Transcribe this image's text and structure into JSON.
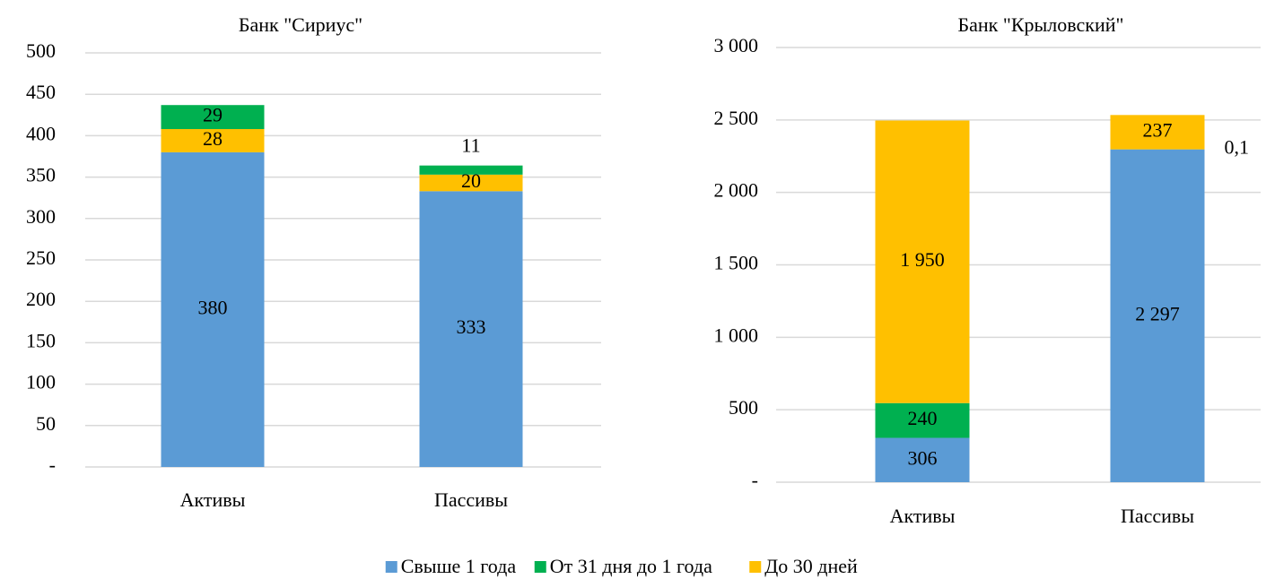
{
  "chart_data": [
    {
      "type": "bar",
      "stacked": true,
      "title": "Банк \"Сириус\"",
      "categories": [
        "Активы",
        "Пассивы"
      ],
      "series": [
        {
          "name": "Свыше 1 года",
          "color": "#5b9bd5",
          "values": [
            380,
            333
          ]
        },
        {
          "name": "До 30 дней",
          "color": "#ffc000",
          "values": [
            28,
            20
          ]
        },
        {
          "name": "От 31 дня до 1 года",
          "color": "#00b050",
          "values": [
            29,
            11
          ]
        }
      ],
      "ylim": [
        0,
        500
      ],
      "yticks": [
        {
          "value": 0,
          "label": "-"
        },
        50,
        100,
        150,
        200,
        250,
        300,
        350,
        400,
        450,
        500
      ],
      "grid": true
    },
    {
      "type": "bar",
      "stacked": true,
      "title": "Банк \"Крыловский\"",
      "categories": [
        "Активы",
        "Пассивы"
      ],
      "series": [
        {
          "name": "Свыше 1 года",
          "color": "#5b9bd5",
          "values": [
            306,
            2297
          ],
          "value_labels": [
            "306",
            "2 297"
          ]
        },
        {
          "name": "От 31 дня до 1 года",
          "color": "#00b050",
          "values": [
            240,
            0.1
          ],
          "value_labels": [
            "240",
            "0,1"
          ]
        },
        {
          "name": "До 30 дней",
          "color": "#ffc000",
          "values": [
            1950,
            237
          ],
          "value_labels": [
            "1 950",
            "237"
          ]
        }
      ],
      "ylim": [
        0,
        3000
      ],
      "yticks": [
        {
          "value": 0,
          "label": "-"
        },
        500,
        {
          "value": 1000,
          "label": "1 000"
        },
        {
          "value": 1500,
          "label": "1 500"
        },
        {
          "value": 2000,
          "label": "2 000"
        },
        {
          "value": 2500,
          "label": "2 500"
        },
        {
          "value": 3000,
          "label": "3 000"
        }
      ],
      "grid": true
    }
  ]
}
